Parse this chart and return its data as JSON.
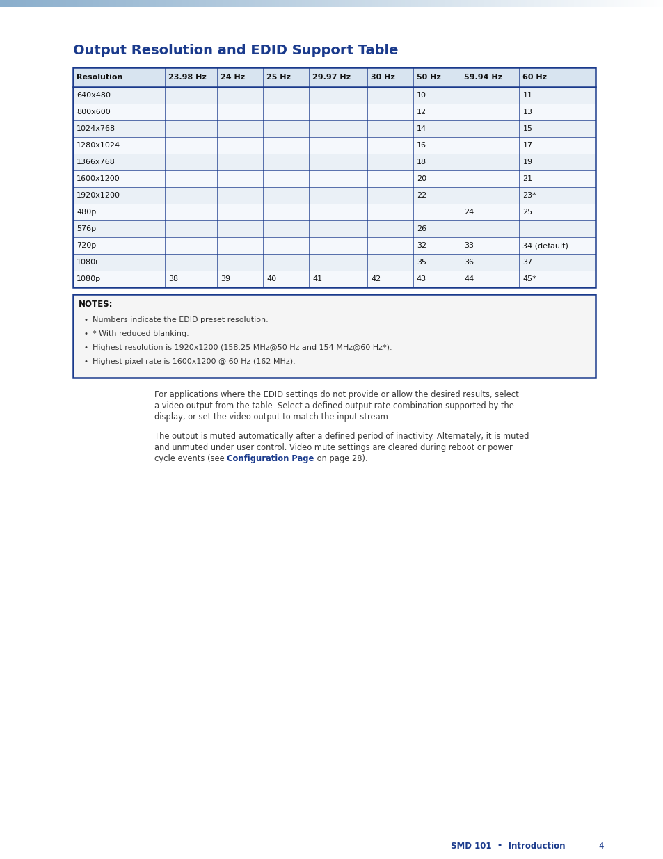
{
  "title": "Output Resolution and EDID Support Table",
  "title_color": "#1a3a8c",
  "page_bg": "#ffffff",
  "table_columns": [
    "Resolution",
    "23.98 Hz",
    "24 Hz",
    "25 Hz",
    "29.97 Hz",
    "30 Hz",
    "50 Hz",
    "59.94 Hz",
    "60 Hz"
  ],
  "table_rows": [
    [
      "640x480",
      "",
      "",
      "",
      "",
      "",
      "10",
      "",
      "11"
    ],
    [
      "800x600",
      "",
      "",
      "",
      "",
      "",
      "12",
      "",
      "13"
    ],
    [
      "1024x768",
      "",
      "",
      "",
      "",
      "",
      "14",
      "",
      "15"
    ],
    [
      "1280x1024",
      "",
      "",
      "",
      "",
      "",
      "16",
      "",
      "17"
    ],
    [
      "1366x768",
      "",
      "",
      "",
      "",
      "",
      "18",
      "",
      "19"
    ],
    [
      "1600x1200",
      "",
      "",
      "",
      "",
      "",
      "20",
      "",
      "21"
    ],
    [
      "1920x1200",
      "",
      "",
      "",
      "",
      "",
      "22",
      "",
      "23*"
    ],
    [
      "480p",
      "",
      "",
      "",
      "",
      "",
      "",
      "24",
      "25"
    ],
    [
      "576p",
      "",
      "",
      "",
      "",
      "",
      "26",
      "",
      ""
    ],
    [
      "720p",
      "",
      "",
      "",
      "",
      "",
      "32",
      "33",
      "34 (default)"
    ],
    [
      "1080i",
      "",
      "",
      "",
      "",
      "",
      "35",
      "36",
      "37"
    ],
    [
      "1080p",
      "38",
      "39",
      "40",
      "41",
      "42",
      "43",
      "44",
      "45*"
    ]
  ],
  "header_row_bg": "#d8e4f0",
  "odd_row_bg": "#eaf0f6",
  "even_row_bg": "#f5f8fc",
  "table_border_color": "#1a3a8c",
  "notes_title": "NOTES:",
  "notes_items": [
    "Numbers indicate the EDID preset resolution.",
    "* With reduced blanking.",
    "Highest resolution is 1920x1200 (158.25 MHz@50 Hz and 154 MHz@60 Hz*).",
    "Highest pixel rate is 1600x1200 @ 60 Hz (162 MHz)."
  ],
  "notes_bg": "#f5f5f5",
  "notes_border_color": "#1a3a8c",
  "para1": "For applications where the EDID settings do not provide or allow the desired results, select a video output from the table. Select a defined output rate combination supported by the display, or set the video output to match the input stream.",
  "para2_line1": "The output is muted automatically after a defined period of inactivity. Alternately, it is muted",
  "para2_line2": "and unmuted under user control. Video mute settings are cleared during reboot or power",
  "para2_line3_before": "cycle events (see ",
  "para2_link": "Configuration Page",
  "para2_line3_after": " on page 28).",
  "link_color": "#1a3a8c",
  "body_text_color": "#3a3a3a",
  "footer_text": "SMD 101  •  Introduction",
  "footer_page": "4",
  "footer_color": "#1a3a8c",
  "col_widths_rel": [
    1.45,
    0.82,
    0.72,
    0.72,
    0.92,
    0.72,
    0.75,
    0.92,
    1.2
  ]
}
